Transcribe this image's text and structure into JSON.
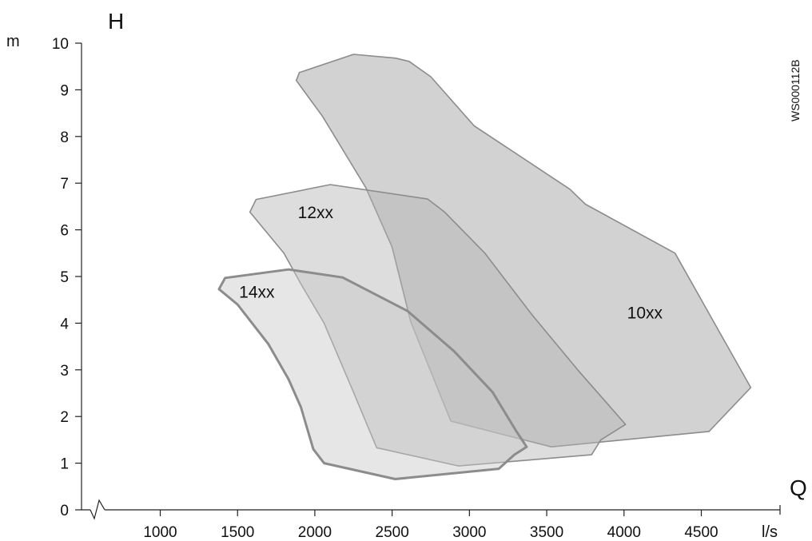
{
  "chart_data": {
    "type": "area",
    "axis_title_y": "H",
    "axis_unit_y": "m",
    "axis_title_x": "Q",
    "axis_unit_x": "l/s",
    "figure_code": "WS000112B",
    "x_ticks": [
      1000,
      1500,
      2000,
      2500,
      3000,
      3500,
      4000,
      4500
    ],
    "y_ticks": [
      0,
      1,
      2,
      3,
      4,
      5,
      6,
      7,
      8,
      9,
      10
    ],
    "xlim": [
      550,
      5000
    ],
    "ylim": [
      0,
      10
    ],
    "axis_break": true,
    "grid": false,
    "series": [
      {
        "name": "10xx",
        "color": "#9b9b9b",
        "points": [
          [
            1880,
            9.2
          ],
          [
            1900,
            9.37
          ],
          [
            2250,
            9.76
          ],
          [
            2520,
            9.68
          ],
          [
            2610,
            9.61
          ],
          [
            2750,
            9.28
          ],
          [
            3030,
            8.23
          ],
          [
            3650,
            6.87
          ],
          [
            3750,
            6.55
          ],
          [
            4330,
            5.5
          ],
          [
            4820,
            2.62
          ],
          [
            4550,
            1.68
          ],
          [
            3530,
            1.35
          ],
          [
            2880,
            1.9
          ],
          [
            2620,
            4.03
          ],
          [
            2500,
            5.63
          ],
          [
            2330,
            6.9
          ],
          [
            2050,
            8.43
          ]
        ]
      },
      {
        "name": "12xx",
        "color": "#b4b4b4",
        "points": [
          [
            1580,
            6.38
          ],
          [
            1620,
            6.65
          ],
          [
            2100,
            6.97
          ],
          [
            2730,
            6.66
          ],
          [
            2840,
            6.38
          ],
          [
            3100,
            5.5
          ],
          [
            3400,
            4.2
          ],
          [
            3700,
            3.0
          ],
          [
            4010,
            1.83
          ],
          [
            3850,
            1.5
          ],
          [
            3790,
            1.18
          ],
          [
            2930,
            0.94
          ],
          [
            2400,
            1.33
          ],
          [
            2250,
            2.52
          ],
          [
            2060,
            4.0
          ],
          [
            1910,
            4.84
          ],
          [
            1800,
            5.5
          ]
        ]
      },
      {
        "name": "14xx",
        "color": "#c8c8c8",
        "points": [
          [
            1380,
            4.73
          ],
          [
            1420,
            4.97
          ],
          [
            1830,
            5.15
          ],
          [
            2180,
            4.98
          ],
          [
            2600,
            4.26
          ],
          [
            2900,
            3.4
          ],
          [
            3150,
            2.52
          ],
          [
            3300,
            1.7
          ],
          [
            3370,
            1.35
          ],
          [
            3290,
            1.18
          ],
          [
            3190,
            0.88
          ],
          [
            2520,
            0.66
          ],
          [
            2060,
            1.0
          ],
          [
            1990,
            1.3
          ],
          [
            1910,
            2.2
          ],
          [
            1830,
            2.8
          ],
          [
            1700,
            3.55
          ],
          [
            1500,
            4.4
          ]
        ]
      }
    ],
    "label_anchors": {
      "10xx": [
        4020,
        4.1
      ],
      "12xx": [
        1890,
        6.25
      ],
      "14xx": [
        1510,
        4.55
      ]
    }
  }
}
